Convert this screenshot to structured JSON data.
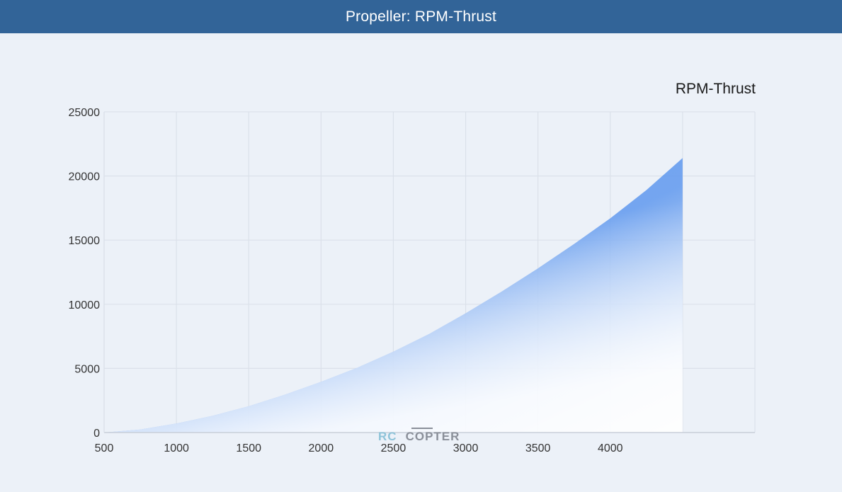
{
  "header": {
    "title": "Propeller: RPM-Thrust"
  },
  "chart_data": {
    "type": "area",
    "title": "RPM-Thrust",
    "xlabel": "",
    "ylabel": "",
    "x_ticks": [
      "500",
      "1000",
      "1500",
      "2000",
      "2500",
      "3000",
      "3500",
      "4000"
    ],
    "y_ticks": [
      "0",
      "5000",
      "10000",
      "15000",
      "20000",
      "25000"
    ],
    "xlim": [
      500,
      5000
    ],
    "ylim": [
      0,
      25000
    ],
    "grid": true,
    "series": [
      {
        "points": [
          [
            500,
            0
          ],
          [
            750,
            240
          ],
          [
            1000,
            700
          ],
          [
            1250,
            1300
          ],
          [
            1500,
            2050
          ],
          [
            1750,
            2950
          ],
          [
            2000,
            3950
          ],
          [
            2250,
            5050
          ],
          [
            2500,
            6300
          ],
          [
            2750,
            7700
          ],
          [
            3000,
            9300
          ],
          [
            3250,
            11000
          ],
          [
            3500,
            12800
          ],
          [
            3750,
            14700
          ],
          [
            4000,
            16700
          ],
          [
            4250,
            18900
          ],
          [
            4500,
            21400
          ]
        ]
      }
    ],
    "colors": {
      "fill_strong": "#5f98ee",
      "fill_light": "#ffffff",
      "grid": "#dbe1ea"
    }
  },
  "logo": {
    "rc": "RC",
    "copter": "COPTER"
  }
}
